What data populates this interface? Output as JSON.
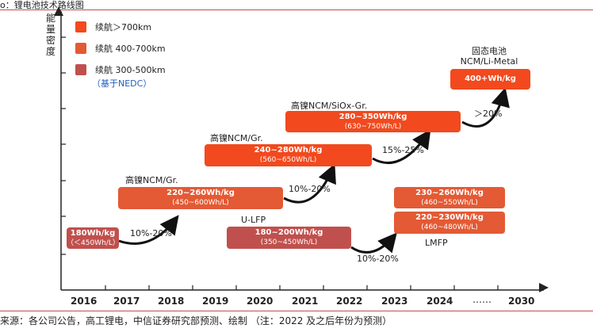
{
  "header": {
    "title": "o：锂电池技术路线图"
  },
  "y_axis_label": "能量密度",
  "legend": [
    {
      "label": "续航＞700km",
      "color": "#f2491e"
    },
    {
      "label": "续航 400-700km",
      "color": "#e35a34"
    },
    {
      "label": "续航 300-500km",
      "color": "#c0504d"
    }
  ],
  "legend_note": "（基于NEDC）",
  "x_axis": {
    "ticks": [
      "2016",
      "2017",
      "2018",
      "2019",
      "2020",
      "2021",
      "2022",
      "2023",
      "2024",
      "……",
      "2030"
    ]
  },
  "stages": {
    "s2016": {
      "title": "",
      "line1": "180Wh/kg",
      "line2": "（＜450Wh/L）"
    },
    "s2017": {
      "title": "高镍NCM/Gr.",
      "line1": "220~260Wh/kg",
      "line2": "(450~600Wh/L)"
    },
    "s2019": {
      "title": "高镍NCM/Gr.",
      "line1": "240~280Wh/kg",
      "line2": "(560~650Wh/L)"
    },
    "s2021": {
      "title": "高镍NCM/SiOx-Gr.",
      "line1": "280~350Wh/kg",
      "line2": "(630~750Wh/L)"
    },
    "s2030": {
      "title_line1": "固态电池",
      "title_line2": "NCM/Li-Metal",
      "line1": "400+Wh/kg"
    },
    "ulfp": {
      "title": "U-LFP",
      "line1": "180~200Wh/kg",
      "line2": "(350~450Wh/L)"
    },
    "ncm2023": {
      "line1": "230~260Wh/kg",
      "line2": "(460~550Wh/L)"
    },
    "lmfp": {
      "title": "LMFP",
      "line1": "220~230Wh/kg",
      "line2": "(460~480Wh/L)"
    }
  },
  "improvements": {
    "a": "10%-20%",
    "b": "10%-20%",
    "c": "15%-25%",
    "d": "＞20%",
    "e": "10%-20%"
  },
  "footer": {
    "source": "来源：各公司公告，高工锂电，中信证券研究部预测、绘制 （注：2022 及之后年份为预测）"
  }
}
